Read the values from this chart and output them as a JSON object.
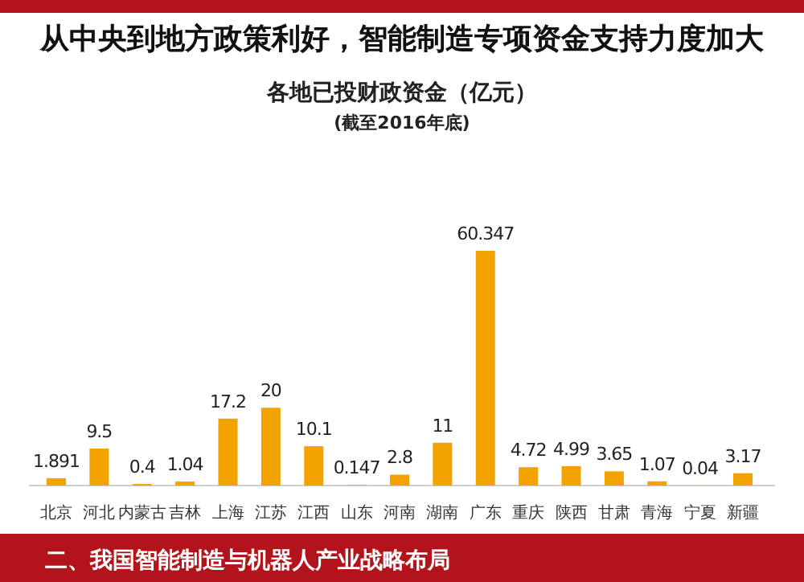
{
  "chart_data": {
    "type": "bar",
    "title": "从中央到地方政策利好，智能制造专项资金支持力度加大",
    "subtitle": "各地已投财政资金（亿元）",
    "annotations": [
      "(截至2016年底)",
      "二、我国智能制造与机器人产业战略布局"
    ],
    "categories": [
      "北京",
      "河北",
      "内蒙古",
      "吉林",
      "上海",
      "江苏",
      "江西",
      "山东",
      "河南",
      "湖南",
      "广东",
      "重庆",
      "陕西",
      "甘肃",
      "青海",
      "宁夏",
      "新疆"
    ],
    "values": [
      1.891,
      9.5,
      0.4,
      1.04,
      17.2,
      20,
      10.1,
      0.147,
      2.8,
      11,
      60.347,
      4.72,
      4.99,
      3.65,
      1.07,
      0.04,
      3.17
    ],
    "value_labels": [
      "1.891",
      "9.5",
      "0.4",
      "1.04",
      "17.2",
      "20",
      "10.1",
      "0.147",
      "2.8",
      "11",
      "60.347",
      "4.72",
      "4.99",
      "3.65",
      "1.07",
      "0.04",
      "3.17"
    ],
    "color": "#f2a300"
  }
}
